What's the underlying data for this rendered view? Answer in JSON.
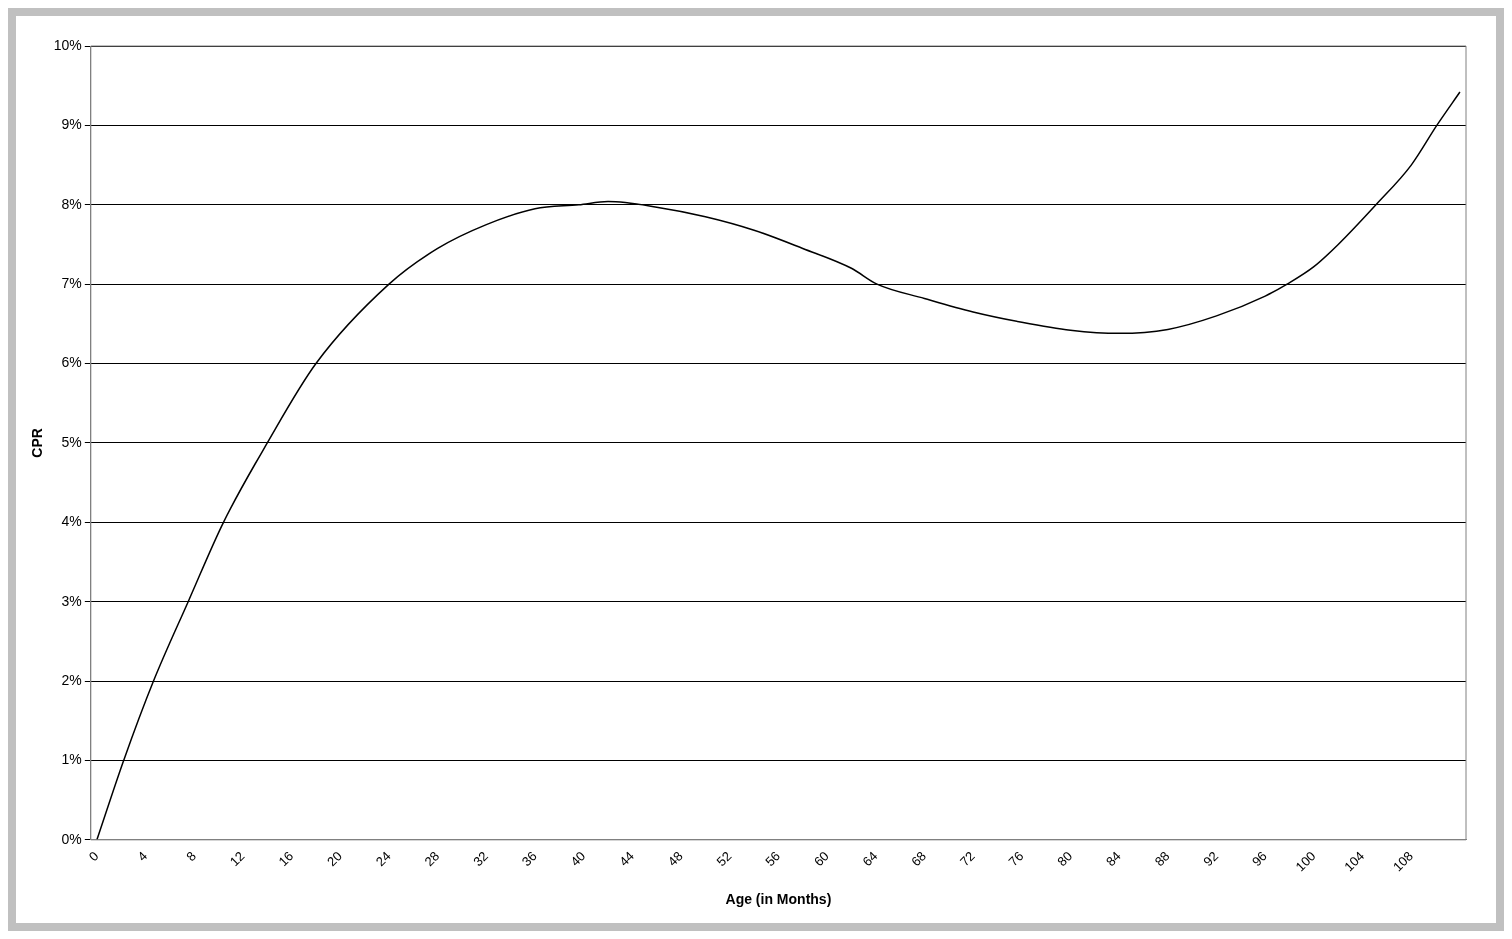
{
  "chart_data": {
    "type": "line",
    "xlabel": "Age (in Months)",
    "ylabel": "CPR",
    "x": [
      0,
      2.2,
      4.65,
      7.5,
      10.4,
      14,
      18,
      24,
      28,
      32,
      36,
      39.6,
      42,
      46,
      50,
      54,
      58,
      62,
      64.1,
      68,
      72,
      76,
      80,
      84,
      88,
      92,
      96,
      97.8,
      100,
      102,
      105.1,
      108,
      110.1,
      112
    ],
    "series": [
      {
        "color": "#000000",
        "values": [
          0,
          1,
          2,
          3,
          4,
          5,
          6,
          7,
          7.45,
          7.75,
          7.95,
          8,
          8.04,
          7.97,
          7.85,
          7.68,
          7.45,
          7.2,
          7,
          6.82,
          6.65,
          6.52,
          6.42,
          6.38,
          6.43,
          6.6,
          6.85,
          7,
          7.22,
          7.5,
          8,
          8.5,
          9,
          9.42
        ]
      }
    ],
    "xlim": [
      -0.5,
      112.5
    ],
    "ylim": [
      0,
      10
    ],
    "xticks": [
      0,
      4,
      8,
      12,
      16,
      20,
      24,
      28,
      32,
      36,
      40,
      44,
      48,
      52,
      56,
      60,
      64,
      68,
      72,
      76,
      80,
      84,
      88,
      92,
      96,
      100,
      104,
      108
    ],
    "yticks": [
      {
        "value": 0,
        "label": "0%"
      },
      {
        "value": 1,
        "label": "1%"
      },
      {
        "value": 2,
        "label": "2%"
      },
      {
        "value": 3,
        "label": "3%"
      },
      {
        "value": 4,
        "label": "4%"
      },
      {
        "value": 5,
        "label": "5%"
      },
      {
        "value": 6,
        "label": "6%"
      },
      {
        "value": 7,
        "label": "7%"
      },
      {
        "value": 8,
        "label": "8%"
      },
      {
        "value": 9,
        "label": "9%"
      },
      {
        "value": 10,
        "label": "10%"
      }
    ],
    "grid": "y",
    "legend": false,
    "marker": "none",
    "line_style": "solid"
  }
}
